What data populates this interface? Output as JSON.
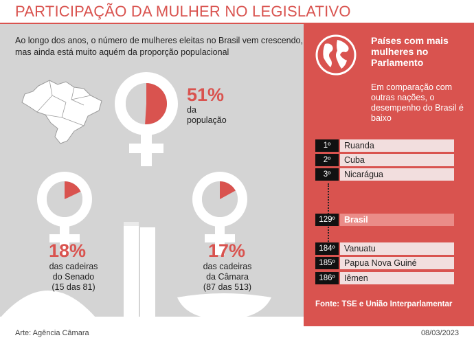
{
  "title": "PARTICIPAÇÃO DA MULHER NO LEGISLATIVO",
  "intro": "Ao longo dos anos, o número de mulheres eleitas no Brasil vem crescendo, mas ainda está muito aquém da proporção populacional",
  "colors": {
    "accent": "#d9534f",
    "panel": "#d4d4d4",
    "bg_white": "#ffffff",
    "rank_highlight": "#ea8c88"
  },
  "icons": [
    "brazil-map-icon",
    "globe-icon",
    "female-symbol-icon",
    "congress-building-icon"
  ],
  "chart_data": [
    {
      "type": "pie",
      "values": [
        51,
        49
      ],
      "percent_label": "51%",
      "caption": [
        "da",
        "população"
      ]
    },
    {
      "type": "pie",
      "values": [
        18,
        82
      ],
      "percent_label": "18%",
      "caption": [
        "das cadeiras",
        "do Senado",
        "(15 das 81)"
      ]
    },
    {
      "type": "pie",
      "values": [
        17,
        83
      ],
      "percent_label": "17%",
      "caption": [
        "das cadeiras",
        "da Câmara",
        "(87 das 513)"
      ]
    }
  ],
  "sidebar": {
    "heading": "Países com mais mulheres no Parlamento",
    "subheading": "Em comparação com outras nações, o desempenho do Brasil é baixo",
    "ranking": [
      {
        "rank": "1º",
        "country": "Ruanda"
      },
      {
        "rank": "2º",
        "country": "Cuba"
      },
      {
        "rank": "3º",
        "country": "Nicarágua"
      },
      {
        "rank": "129º",
        "country": "Brasil",
        "highlight": true
      },
      {
        "rank": "184º",
        "country": "Vanuatu"
      },
      {
        "rank": "185º",
        "country": "Papua Nova Guiné"
      },
      {
        "rank": "186º",
        "country": "Iêmen"
      }
    ],
    "source": "Fonte: TSE e União Interparlamentar"
  },
  "footer": {
    "credit": "Arte: Agência Câmara",
    "date": "08/03/2023"
  }
}
